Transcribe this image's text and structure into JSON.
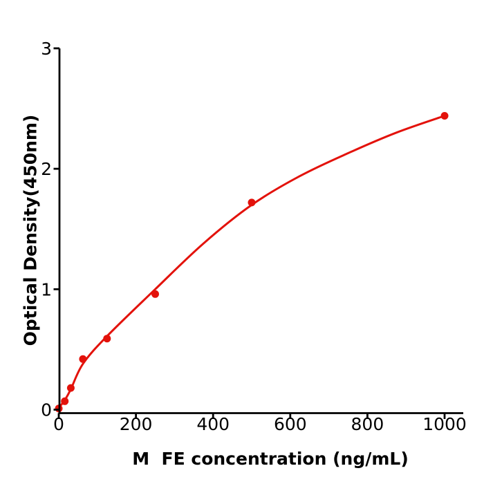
{
  "chart_data": {
    "type": "scatter",
    "title": "",
    "xlabel": "M  FE concentration (ng/mL)",
    "ylabel": "Optical Density(450nm)",
    "x_ticks": [
      0,
      200,
      400,
      600,
      800,
      1000
    ],
    "y_ticks": [
      0,
      1,
      2,
      3
    ],
    "xlim": [
      0,
      1048
    ],
    "ylim": [
      -0.03,
      3
    ],
    "grid": false,
    "legend": "none",
    "series": [
      {
        "name": "standard-curve-points",
        "marker": "circle",
        "color": "#e3120b",
        "x": [
          0,
          15.6,
          31.25,
          62.5,
          125,
          250,
          500,
          1000
        ],
        "y": [
          0.01,
          0.07,
          0.18,
          0.42,
          0.59,
          0.96,
          1.72,
          2.44
        ]
      }
    ],
    "fit_curve": {
      "name": "4PL-fit",
      "color": "#e3120b",
      "x": [
        0,
        15.6,
        31.25,
        62.5,
        125,
        250,
        375,
        500,
        625,
        750,
        875,
        1000
      ],
      "y": [
        0.015,
        0.08,
        0.17,
        0.38,
        0.61,
        1.0,
        1.38,
        1.7,
        1.94,
        2.13,
        2.3,
        2.44
      ]
    },
    "axis_color": "#000000",
    "background_color": "#ffffff"
  }
}
